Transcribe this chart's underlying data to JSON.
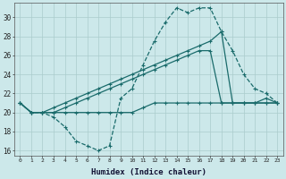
{
  "xlabel": "Humidex (Indice chaleur)",
  "bg_color": "#cce8ea",
  "grid_color": "#aacccc",
  "line_color": "#1a6b6b",
  "xlim": [
    -0.5,
    23.5
  ],
  "ylim": [
    15.5,
    31.5
  ],
  "yticks": [
    16,
    18,
    20,
    22,
    24,
    26,
    28,
    30
  ],
  "xticks": [
    0,
    1,
    2,
    3,
    4,
    5,
    6,
    7,
    8,
    9,
    10,
    11,
    12,
    13,
    14,
    15,
    16,
    17,
    18,
    19,
    20,
    21,
    22,
    23
  ],
  "series": {
    "line1": [
      21,
      20,
      20,
      19.5,
      18.5,
      17,
      16.5,
      16,
      16.5,
      21.5,
      22.5,
      25,
      27.5,
      29.5,
      31,
      30.5,
      31,
      31,
      28.5,
      26.5,
      24,
      22.5,
      22,
      21
    ],
    "line2": [
      21,
      20,
      20,
      20.5,
      21,
      21.5,
      22,
      22.5,
      23,
      23.5,
      24,
      24.5,
      25,
      25.5,
      26,
      26.5,
      27,
      27.5,
      28.5,
      21,
      21,
      21,
      21.5,
      21
    ],
    "line3": [
      21,
      20,
      20,
      20,
      20.5,
      21,
      21.5,
      22,
      22.5,
      23,
      23.5,
      24,
      24.5,
      25,
      25.5,
      26,
      26.5,
      26.5,
      21,
      21,
      21,
      21,
      21,
      21
    ],
    "line4": [
      21,
      20,
      20,
      20,
      20,
      20,
      20,
      20,
      20,
      20,
      20,
      20.5,
      21,
      21,
      21,
      21,
      21,
      21,
      21,
      21,
      21,
      21,
      21,
      21
    ]
  }
}
